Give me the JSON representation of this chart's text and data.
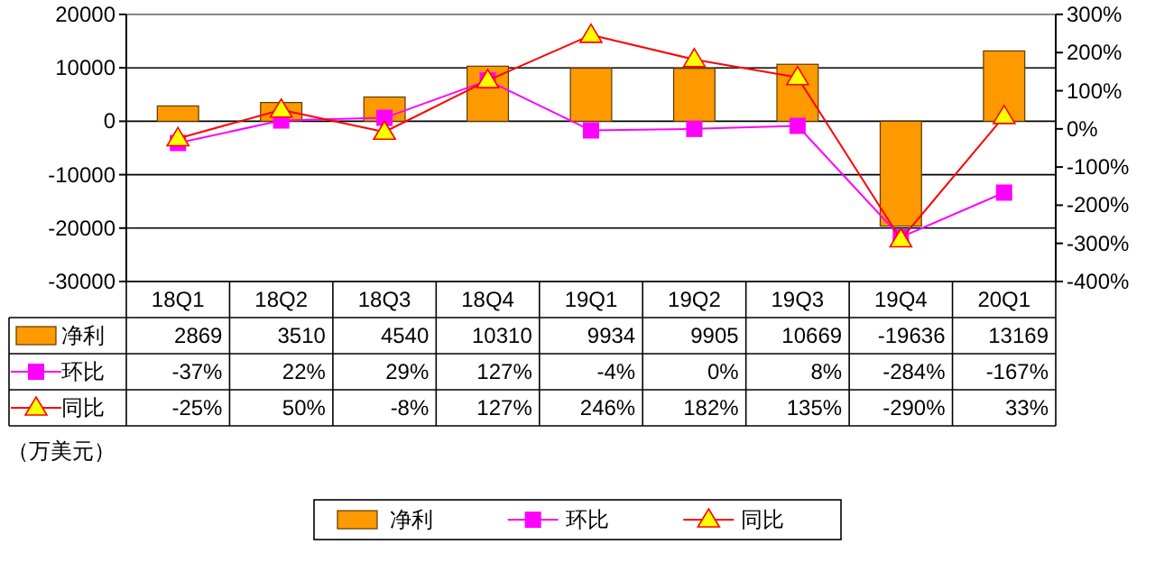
{
  "chart_data": {
    "type": "bar",
    "categories": [
      "18Q1",
      "18Q2",
      "18Q3",
      "18Q4",
      "19Q1",
      "19Q2",
      "19Q3",
      "19Q4",
      "20Q1"
    ],
    "series": [
      {
        "name": "净利",
        "color": "#ff9900",
        "values": [
          2869,
          3510,
          4540,
          10310,
          9934,
          9905,
          10669,
          -19636,
          13169
        ]
      },
      {
        "name": "环比",
        "type": "line",
        "axis": "y2",
        "color": "#ff00ff",
        "marker": "square",
        "values": [
          -37,
          22,
          29,
          127,
          -4,
          0,
          8,
          -284,
          -167
        ],
        "value_labels": [
          "-37%",
          "22%",
          "29%",
          "127%",
          "-4%",
          "0%",
          "8%",
          "-284%",
          "-167%"
        ]
      },
      {
        "name": "同比",
        "type": "line",
        "axis": "y2",
        "color": "#ff0000",
        "marker": "triangle",
        "values": [
          -25,
          50,
          -8,
          127,
          246,
          182,
          135,
          -290,
          33
        ],
        "value_labels": [
          "-25%",
          "50%",
          "-8%",
          "127%",
          "246%",
          "182%",
          "135%",
          "-290%",
          "33%"
        ]
      }
    ],
    "ylim": [
      -30000,
      20000
    ],
    "yticks": [
      -30000,
      -20000,
      -10000,
      0,
      10000,
      20000
    ],
    "y2lim": [
      -400,
      300
    ],
    "y2ticks": [
      {
        "value": -400,
        "label": "-400%"
      },
      {
        "value": -300,
        "label": "-300%"
      },
      {
        "value": -200,
        "label": "-200%"
      },
      {
        "value": -100,
        "label": "-100%"
      },
      {
        "value": 0,
        "label": "0%"
      },
      {
        "value": 100,
        "label": "100%"
      },
      {
        "value": 200,
        "label": "200%"
      },
      {
        "value": 300,
        "label": "300%"
      }
    ],
    "grid": "y",
    "data_labels": true,
    "legend": "bottom",
    "annotations": [
      "（万美元）"
    ]
  }
}
